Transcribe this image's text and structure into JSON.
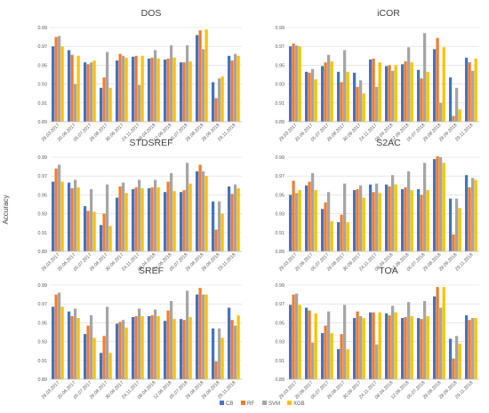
{
  "chart_data": {
    "type": "bar",
    "ylabel": "Accuracy",
    "ylim": [
      0.89,
      0.99
    ],
    "yticks": [
      "0.89",
      "0.91",
      "0.93",
      "0.95",
      "0.97",
      "0.99"
    ],
    "categories": [
      "29.03.2017",
      "20.06.2017",
      "05.07.2017",
      "26.08.2017",
      "30.09.2017",
      "24.11.2017",
      "08.04.2018",
      "12.06.2018",
      "05.07.2018",
      "29.08.2018",
      "28.09.2018",
      "29.11.2018"
    ],
    "series_names": [
      "CB",
      "RF",
      "SVM",
      "XGB"
    ],
    "colors": [
      "#4472C4",
      "#ED7D31",
      "#A5A5A5",
      "#FFC000"
    ],
    "legend": "bottom",
    "panels": [
      {
        "title": "DOS",
        "series": [
          {
            "name": "CB",
            "values": [
              0.97,
              0.966,
              0.953,
              0.926,
              0.955,
              0.959,
              0.957,
              0.956,
              0.953,
              0.982,
              0.932,
              0.96
            ]
          },
          {
            "name": "RF",
            "values": [
              0.98,
              0.961,
              0.951,
              0.937,
              0.962,
              0.96,
              0.958,
              0.957,
              0.953,
              0.987,
              0.915,
              0.955
            ]
          },
          {
            "name": "SVM",
            "values": [
              0.981,
              0.93,
              0.953,
              0.964,
              0.96,
              0.929,
              0.966,
              0.971,
              0.971,
              0.967,
              0.936,
              0.962
            ]
          },
          {
            "name": "XGB",
            "values": [
              0.97,
              0.96,
              0.955,
              0.926,
              0.958,
              0.96,
              0.957,
              0.958,
              0.954,
              0.988,
              0.938,
              0.96
            ]
          }
        ]
      },
      {
        "title": "iCOR",
        "series": [
          {
            "name": "CB",
            "values": [
              0.97,
              0.943,
              0.949,
              0.943,
              0.942,
              0.956,
              0.949,
              0.951,
              0.945,
              0.967,
              0.937,
              0.958
            ]
          },
          {
            "name": "RF",
            "values": [
              0.973,
              0.942,
              0.953,
              0.932,
              0.927,
              0.957,
              0.95,
              0.954,
              0.936,
              0.979,
              0.896,
              0.953
            ]
          },
          {
            "name": "SVM",
            "values": [
              0.971,
              0.946,
              0.961,
              0.966,
              0.934,
              0.927,
              0.944,
              0.969,
              0.984,
              0.91,
              0.926,
              0.944
            ]
          },
          {
            "name": "XGB",
            "values": [
              0.97,
              0.935,
              0.954,
              0.943,
              0.92,
              0.953,
              0.95,
              0.953,
              0.943,
              0.969,
              0.903,
              0.957
            ]
          }
        ]
      },
      {
        "title": "STDSREF",
        "series": [
          {
            "name": "CB",
            "values": [
              0.964,
              0.963,
              0.938,
              0.918,
              0.947,
              0.956,
              0.957,
              0.953,
              0.953,
              0.975,
              0.943,
              0.959
            ]
          },
          {
            "name": "RF",
            "values": [
              0.978,
              0.957,
              0.933,
              0.93,
              0.959,
              0.958,
              0.958,
              0.964,
              0.955,
              0.982,
              0.913,
              0.951
            ]
          },
          {
            "name": "SVM",
            "values": [
              0.982,
              0.966,
              0.956,
              0.961,
              0.963,
              0.966,
              0.966,
              0.973,
              0.984,
              0.975,
              0.943,
              0.961
            ]
          },
          {
            "name": "XGB",
            "values": [
              0.964,
              0.958,
              0.932,
              0.917,
              0.952,
              0.957,
              0.958,
              0.954,
              0.962,
              0.97,
              0.93,
              0.957
            ]
          }
        ]
      },
      {
        "title": "S2AC",
        "series": [
          {
            "name": "CB",
            "values": [
              0.95,
              0.96,
              0.935,
              0.921,
              0.955,
              0.961,
              0.961,
              0.956,
              0.956,
              0.988,
              0.946,
              0.971
            ]
          },
          {
            "name": "RF",
            "values": [
              0.965,
              0.964,
              0.942,
              0.929,
              0.956,
              0.953,
              0.959,
              0.958,
              0.95,
              0.991,
              0.908,
              0.958
            ]
          },
          {
            "name": "SVM",
            "values": [
              0.952,
              0.973,
              0.953,
              0.962,
              0.96,
              0.962,
              0.971,
              0.975,
              0.984,
              0.99,
              0.946,
              0.968
            ]
          },
          {
            "name": "XGB",
            "values": [
              0.955,
              0.955,
              0.922,
              0.921,
              0.947,
              0.952,
              0.961,
              0.955,
              0.955,
              0.984,
              0.936,
              0.966
            ]
          }
        ]
      },
      {
        "title": "SREF",
        "series": [
          {
            "name": "CB",
            "values": [
              0.967,
              0.962,
              0.938,
              0.918,
              0.949,
              0.956,
              0.957,
              0.952,
              0.954,
              0.98,
              0.944,
              0.966
            ]
          },
          {
            "name": "RF",
            "values": [
              0.98,
              0.957,
              0.947,
              0.936,
              0.951,
              0.957,
              0.958,
              0.963,
              0.953,
              0.987,
              0.909,
              0.953
            ]
          },
          {
            "name": "SVM",
            "values": [
              0.982,
              0.965,
              0.958,
              0.967,
              0.953,
              0.965,
              0.964,
              0.973,
              0.984,
              0.98,
              0.944,
              0.947
            ]
          },
          {
            "name": "XGB",
            "values": [
              0.967,
              0.955,
              0.934,
              0.918,
              0.945,
              0.957,
              0.957,
              0.954,
              0.956,
              0.98,
              0.934,
              0.958
            ]
          }
        ]
      },
      {
        "title": "TOA",
        "series": [
          {
            "name": "CB",
            "values": [
              0.969,
              0.966,
              0.939,
              0.922,
              0.955,
              0.961,
              0.96,
              0.955,
              0.955,
              0.978,
              0.933,
              0.958
            ]
          },
          {
            "name": "RF",
            "values": [
              0.98,
              0.963,
              0.947,
              0.938,
              0.962,
              0.961,
              0.958,
              0.956,
              0.954,
              0.988,
              0.912,
              0.953
            ]
          },
          {
            "name": "SVM",
            "values": [
              0.981,
              0.929,
              0.962,
              0.969,
              0.957,
              0.927,
              0.968,
              0.972,
              0.973,
              0.966,
              0.936,
              0.955
            ]
          },
          {
            "name": "XGB",
            "values": [
              0.969,
              0.96,
              0.939,
              0.922,
              0.955,
              0.961,
              0.961,
              0.957,
              0.957,
              0.988,
              0.928,
              0.955
            ]
          }
        ]
      }
    ]
  }
}
